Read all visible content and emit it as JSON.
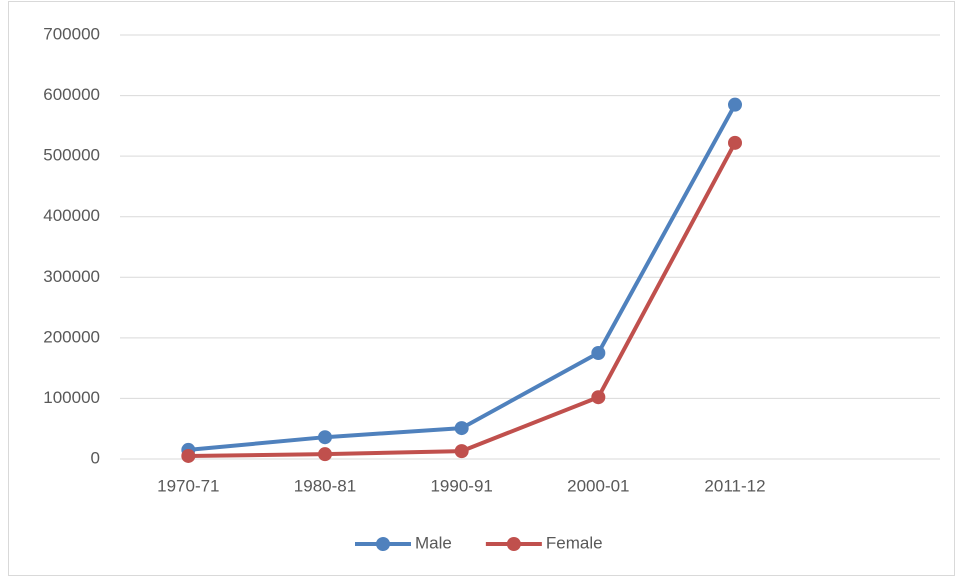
{
  "chart_data": {
    "type": "line",
    "categories": [
      "1970-71",
      "1980-81",
      "1990-91",
      "2000-01",
      "2011-12",
      null
    ],
    "series": [
      {
        "name": "Male",
        "color": "#4f81bd",
        "values": [
          15000,
          36000,
          51000,
          175000,
          585000,
          null
        ]
      },
      {
        "name": "Female",
        "color": "#c0504d",
        "values": [
          5000,
          8000,
          13000,
          102000,
          522000,
          null
        ]
      }
    ],
    "ylim": [
      0,
      700000
    ],
    "yticks": [
      0,
      100000,
      200000,
      300000,
      400000,
      500000,
      600000,
      700000
    ],
    "grid": true,
    "legend": "bottom"
  }
}
